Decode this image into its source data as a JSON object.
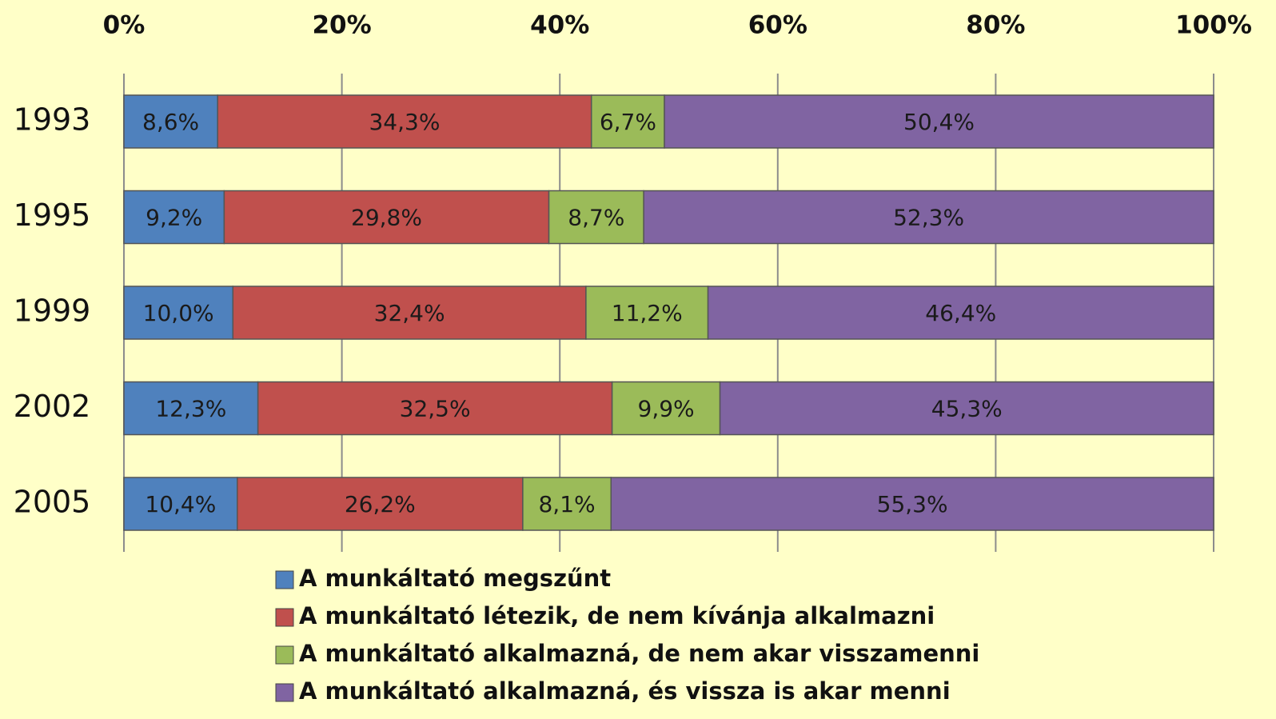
{
  "chart_data": {
    "type": "stacked_barh",
    "categories": [
      "1993",
      "1995",
      "1999",
      "2002",
      "2005"
    ],
    "series": [
      {
        "name": "A munkáltató megszűnt",
        "color": "#4f81bd",
        "values": [
          8.6,
          9.2,
          10.0,
          12.3,
          10.4
        ],
        "value_labels": [
          "8,6%",
          "9,2%",
          "10,0%",
          "12,3%",
          "10,4%"
        ]
      },
      {
        "name": "A munkáltató létezik, de nem kívánja alkalmazni",
        "color": "#c0504d",
        "values": [
          34.3,
          29.8,
          32.4,
          32.5,
          26.2
        ],
        "value_labels": [
          "34,3%",
          "29,8%",
          "32,4%",
          "32,5%",
          "26,2%"
        ]
      },
      {
        "name": "A munkáltató alkalmazná, de nem akar visszamenni",
        "color": "#9bbb59",
        "values": [
          6.7,
          8.7,
          11.2,
          9.9,
          8.1
        ],
        "value_labels": [
          "6,7%",
          "8,7%",
          "11,2%",
          "9,9%",
          "8,1%"
        ]
      },
      {
        "name": "A munkáltató alkalmazná, és vissza is akar menni",
        "color": "#8064a2",
        "values": [
          50.4,
          52.3,
          46.4,
          45.3,
          55.3
        ],
        "value_labels": [
          "50,4%",
          "52,3%",
          "46,4%",
          "45,3%",
          "55,3%"
        ]
      }
    ],
    "xlim": [
      0,
      100
    ],
    "xticks": [
      {
        "value": 0,
        "label": "0%"
      },
      {
        "value": 20,
        "label": "20%"
      },
      {
        "value": 40,
        "label": "40%"
      },
      {
        "value": 60,
        "label": "60%"
      },
      {
        "value": 80,
        "label": "80%"
      },
      {
        "value": 100,
        "label": "100%"
      }
    ],
    "grid": true
  }
}
